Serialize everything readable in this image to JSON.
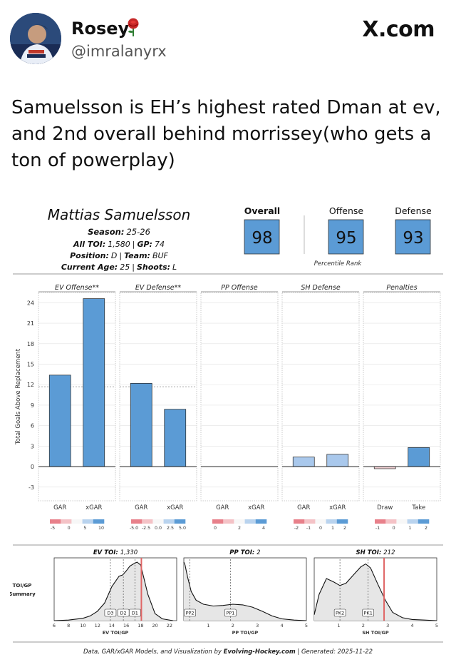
{
  "user": {
    "name": "Rosey",
    "handle": "@imralanyrx",
    "emoji": "🌹"
  },
  "brand": "X.com",
  "tweet_text": "Samuelsson is EH’s highest rated Dman at ev, and 2nd overall behind morrissey(who gets a ton of powerplay)",
  "card": {
    "player_name": "Mattias Samuelsson",
    "season_label": "Season:",
    "season": "25-26",
    "toi_label": "All TOI:",
    "toi": "1,580",
    "gp_label": "GP:",
    "gp": "74",
    "pos_label": "Position:",
    "pos": "D",
    "team_label": "Team:",
    "team": "BUF",
    "age_label": "Current Age:",
    "age": "25",
    "shoots_label": "Shoots:",
    "shoots": "L",
    "ratings": [
      {
        "label": "Overall",
        "value": "98"
      },
      {
        "label": "Offense",
        "value": "95"
      },
      {
        "label": "Defense",
        "value": "93"
      }
    ],
    "percentile_label": "Percentile Rank",
    "footer_prefix": "Data, GAR/xGAR Models, and Visualization by ",
    "footer_brand": "Evolving-Hockey.com",
    "footer_suffix": " | Generated: 2025-11-22"
  },
  "chart_data": [
    {
      "type": "bar",
      "ylabel": "Total Goals Above Replacement",
      "yticks": [
        24,
        21,
        18,
        15,
        12,
        9,
        6,
        3,
        0,
        -3
      ],
      "ylim": [
        -5,
        25.5
      ],
      "panels": [
        {
          "title": "EV Offense**",
          "categories": [
            "GAR",
            "xGAR"
          ],
          "values": [
            13.4,
            24.6
          ],
          "dashed_ref": 11.7,
          "legend_ticks": [
            "-5",
            "0",
            "5",
            "10"
          ]
        },
        {
          "title": "EV Defense**",
          "categories": [
            "GAR",
            "xGAR"
          ],
          "values": [
            12.2,
            8.4
          ],
          "dashed_ref": 11.7,
          "legend_ticks": [
            "-5.0",
            "-2.5",
            "0.0",
            "2.5",
            "5.0"
          ]
        },
        {
          "title": "PP Offense",
          "categories": [
            "GAR",
            "xGAR"
          ],
          "values": [
            0,
            0
          ],
          "legend_ticks": [
            "0",
            "2",
            "4"
          ]
        },
        {
          "title": "SH Defense",
          "categories": [
            "GAR",
            "xGAR"
          ],
          "values": [
            1.4,
            1.8
          ],
          "legend_ticks": [
            "-2",
            "-1",
            "0",
            "1",
            "2"
          ]
        },
        {
          "title": "Penalties",
          "categories": [
            "Draw",
            "Take"
          ],
          "values": [
            -0.3,
            2.8
          ],
          "legend_ticks": [
            "-1",
            "0",
            "1",
            "2"
          ]
        }
      ]
    },
    {
      "type": "area",
      "side_label": [
        "TOI/GP",
        "Summary"
      ],
      "panels": [
        {
          "title_label": "EV TOI:",
          "title_value": "1,330",
          "xlabel": "EV TOI/GP",
          "xticks": [
            6,
            8,
            10,
            12,
            14,
            16,
            18,
            20,
            22
          ],
          "xlim": [
            6,
            23
          ],
          "player_value": 18.1,
          "markers": [
            {
              "label": "D3",
              "x": 13.8
            },
            {
              "label": "D2",
              "x": 15.6
            },
            {
              "label": "D1",
              "x": 17.2
            }
          ],
          "density_x": [
            6,
            8,
            10,
            11,
            12,
            13,
            14,
            15,
            15.5,
            16,
            16.5,
            17,
            17.5,
            18,
            18.5,
            19,
            20,
            21,
            22.5
          ],
          "density_y": [
            0,
            0.01,
            0.04,
            0.08,
            0.16,
            0.3,
            0.58,
            0.76,
            0.78,
            0.85,
            0.93,
            0.97,
            1.0,
            0.95,
            0.7,
            0.45,
            0.12,
            0.03,
            0
          ]
        },
        {
          "title_label": "PP TOI:",
          "title_value": "2",
          "xlabel": "PP TOI/GP",
          "xticks": [
            1,
            2,
            3,
            4,
            5
          ],
          "xlim": [
            0,
            5
          ],
          "player_value": null,
          "markers": [
            {
              "label": "PP2",
              "x": 0.25
            },
            {
              "label": "PP1",
              "x": 1.9
            }
          ],
          "density_x": [
            0,
            0.05,
            0.15,
            0.3,
            0.5,
            0.8,
            1.2,
            1.6,
            2.0,
            2.4,
            2.8,
            3.2,
            3.6,
            4.0,
            4.5,
            5.0
          ],
          "density_y": [
            1.0,
            0.95,
            0.75,
            0.5,
            0.35,
            0.28,
            0.25,
            0.26,
            0.28,
            0.27,
            0.23,
            0.16,
            0.08,
            0.03,
            0.01,
            0
          ]
        },
        {
          "title_label": "SH TOI:",
          "title_value": "212",
          "xlabel": "SH TOI/GP",
          "xticks": [
            1,
            2,
            3,
            4,
            5
          ],
          "xlim": [
            0,
            5
          ],
          "player_value": 2.85,
          "markers": [
            {
              "label": "PK2",
              "x": 1.05
            },
            {
              "label": "PK1",
              "x": 2.2
            }
          ],
          "density_x": [
            0,
            0.2,
            0.5,
            0.8,
            1.05,
            1.3,
            1.6,
            1.9,
            2.1,
            2.3,
            2.6,
            2.9,
            3.2,
            3.6,
            4.0,
            4.5,
            5.0
          ],
          "density_y": [
            0.1,
            0.45,
            0.72,
            0.66,
            0.6,
            0.64,
            0.78,
            0.92,
            0.97,
            0.9,
            0.62,
            0.35,
            0.14,
            0.05,
            0.02,
            0.01,
            0
          ]
        }
      ]
    }
  ]
}
